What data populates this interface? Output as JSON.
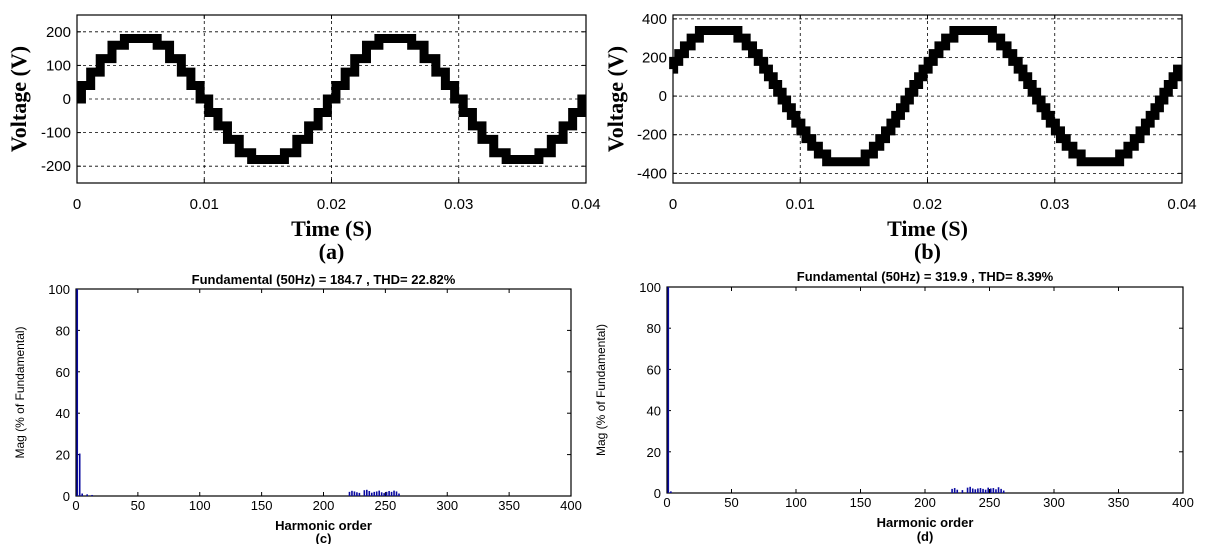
{
  "chart_data": [
    {
      "id": "a",
      "type": "line",
      "caption": "(a)",
      "title": "",
      "xlabel": "Time (S)",
      "ylabel": "Voltage (V)",
      "xlim": [
        0,
        0.04
      ],
      "ylim": [
        -250,
        250
      ],
      "xticks": [
        0,
        0.01,
        0.02,
        0.03,
        0.04
      ],
      "xtick_labels": [
        "0",
        "0.01",
        "0.02",
        "0.03",
        "0.04"
      ],
      "yticks": [
        -200,
        -100,
        0,
        100,
        200
      ],
      "ytick_labels": [
        "-200",
        "-100",
        "0",
        "100",
        "200"
      ],
      "grid": true,
      "levels": [
        -200,
        -180,
        -160,
        -120,
        -80,
        -40,
        0,
        40,
        80,
        120,
        160,
        180,
        200
      ],
      "fundamental_amplitude": 185,
      "frequency_hz": 50,
      "phase_rad": 0,
      "series": [
        {
          "values_note": ""
        }
      ]
    },
    {
      "id": "b",
      "type": "line",
      "caption": "(b)",
      "title": "",
      "xlabel": "Time (S)",
      "ylabel": "Voltage (V)",
      "xlim": [
        0,
        0.04
      ],
      "ylim": [
        -450,
        420
      ],
      "xticks": [
        0,
        0.01,
        0.02,
        0.03,
        0.04
      ],
      "xtick_labels": [
        "0",
        "0.01",
        "0.02",
        "0.03",
        "0.04"
      ],
      "yticks": [
        -400,
        -200,
        0,
        200,
        400
      ],
      "ytick_labels": [
        "-400",
        "-200",
        "0",
        "200",
        "400"
      ],
      "grid": true,
      "levels": [
        -380,
        -340,
        -300,
        -260,
        -220,
        -180,
        -140,
        -100,
        -60,
        -20,
        20,
        60,
        100,
        140,
        180,
        220,
        260,
        300,
        340,
        380
      ],
      "fundamental_amplitude": 360,
      "frequency_hz": 50,
      "phase_rad": 0.45
    },
    {
      "id": "c",
      "type": "bar",
      "caption": "(c)",
      "title": "Fundamental (50Hz) = 184.7 , THD= 22.82%",
      "xlabel": "Harmonic order",
      "ylabel": "Mag (% of Fundamental)",
      "xlim": [
        0,
        400
      ],
      "ylim": [
        0,
        100
      ],
      "xticks": [
        0,
        50,
        100,
        150,
        200,
        250,
        300,
        350,
        400
      ],
      "xtick_labels": [
        "0",
        "50",
        "100",
        "150",
        "200",
        "250",
        "300",
        "350",
        "400"
      ],
      "yticks": [
        0,
        20,
        40,
        60,
        80,
        100
      ],
      "ytick_labels": [
        "0",
        "20",
        "40",
        "60",
        "80",
        "100"
      ],
      "grid": false,
      "harmonics": [
        [
          1,
          100
        ],
        [
          3,
          20.5
        ],
        [
          5,
          1.2
        ],
        [
          9,
          0.8
        ],
        [
          13,
          0.5
        ],
        [
          221,
          2.0
        ],
        [
          223,
          2.5
        ],
        [
          225,
          2.2
        ],
        [
          227,
          1.8
        ],
        [
          229,
          1.5
        ],
        [
          233,
          2.8
        ],
        [
          235,
          3.0
        ],
        [
          237,
          2.4
        ],
        [
          239,
          1.6
        ],
        [
          241,
          2.0
        ],
        [
          243,
          2.2
        ],
        [
          245,
          2.6
        ],
        [
          247,
          1.8
        ],
        [
          249,
          1.4
        ],
        [
          251,
          2.0
        ],
        [
          253,
          2.4
        ],
        [
          255,
          2.0
        ],
        [
          257,
          2.6
        ],
        [
          259,
          2.2
        ],
        [
          261,
          1.2
        ]
      ]
    },
    {
      "id": "d",
      "type": "bar",
      "caption": "(d)",
      "title": "Fundamental (50Hz) = 319.9 , THD= 8.39%",
      "xlabel": "Harmonic order",
      "ylabel": "Mag (% of Fundamental)",
      "xlim": [
        0,
        400
      ],
      "ylim": [
        0,
        100
      ],
      "xticks": [
        0,
        50,
        100,
        150,
        200,
        250,
        300,
        350,
        400
      ],
      "xtick_labels": [
        "0",
        "50",
        "100",
        "150",
        "200",
        "250",
        "300",
        "350",
        "400"
      ],
      "yticks": [
        0,
        20,
        40,
        60,
        80,
        100
      ],
      "ytick_labels": [
        "0",
        "20",
        "40",
        "60",
        "80",
        "100"
      ],
      "grid": false,
      "harmonics": [
        [
          1,
          100
        ],
        [
          3,
          0.8
        ],
        [
          221,
          2.0
        ],
        [
          223,
          2.4
        ],
        [
          225,
          1.6
        ],
        [
          229,
          1.4
        ],
        [
          233,
          2.6
        ],
        [
          235,
          3.0
        ],
        [
          237,
          2.2
        ],
        [
          239,
          1.8
        ],
        [
          241,
          2.2
        ],
        [
          243,
          2.4
        ],
        [
          245,
          2.0
        ],
        [
          247,
          1.6
        ],
        [
          249,
          2.6
        ],
        [
          251,
          2.2
        ],
        [
          253,
          2.4
        ],
        [
          255,
          1.8
        ],
        [
          257,
          2.8
        ],
        [
          259,
          2.0
        ],
        [
          261,
          1.2
        ]
      ]
    }
  ]
}
